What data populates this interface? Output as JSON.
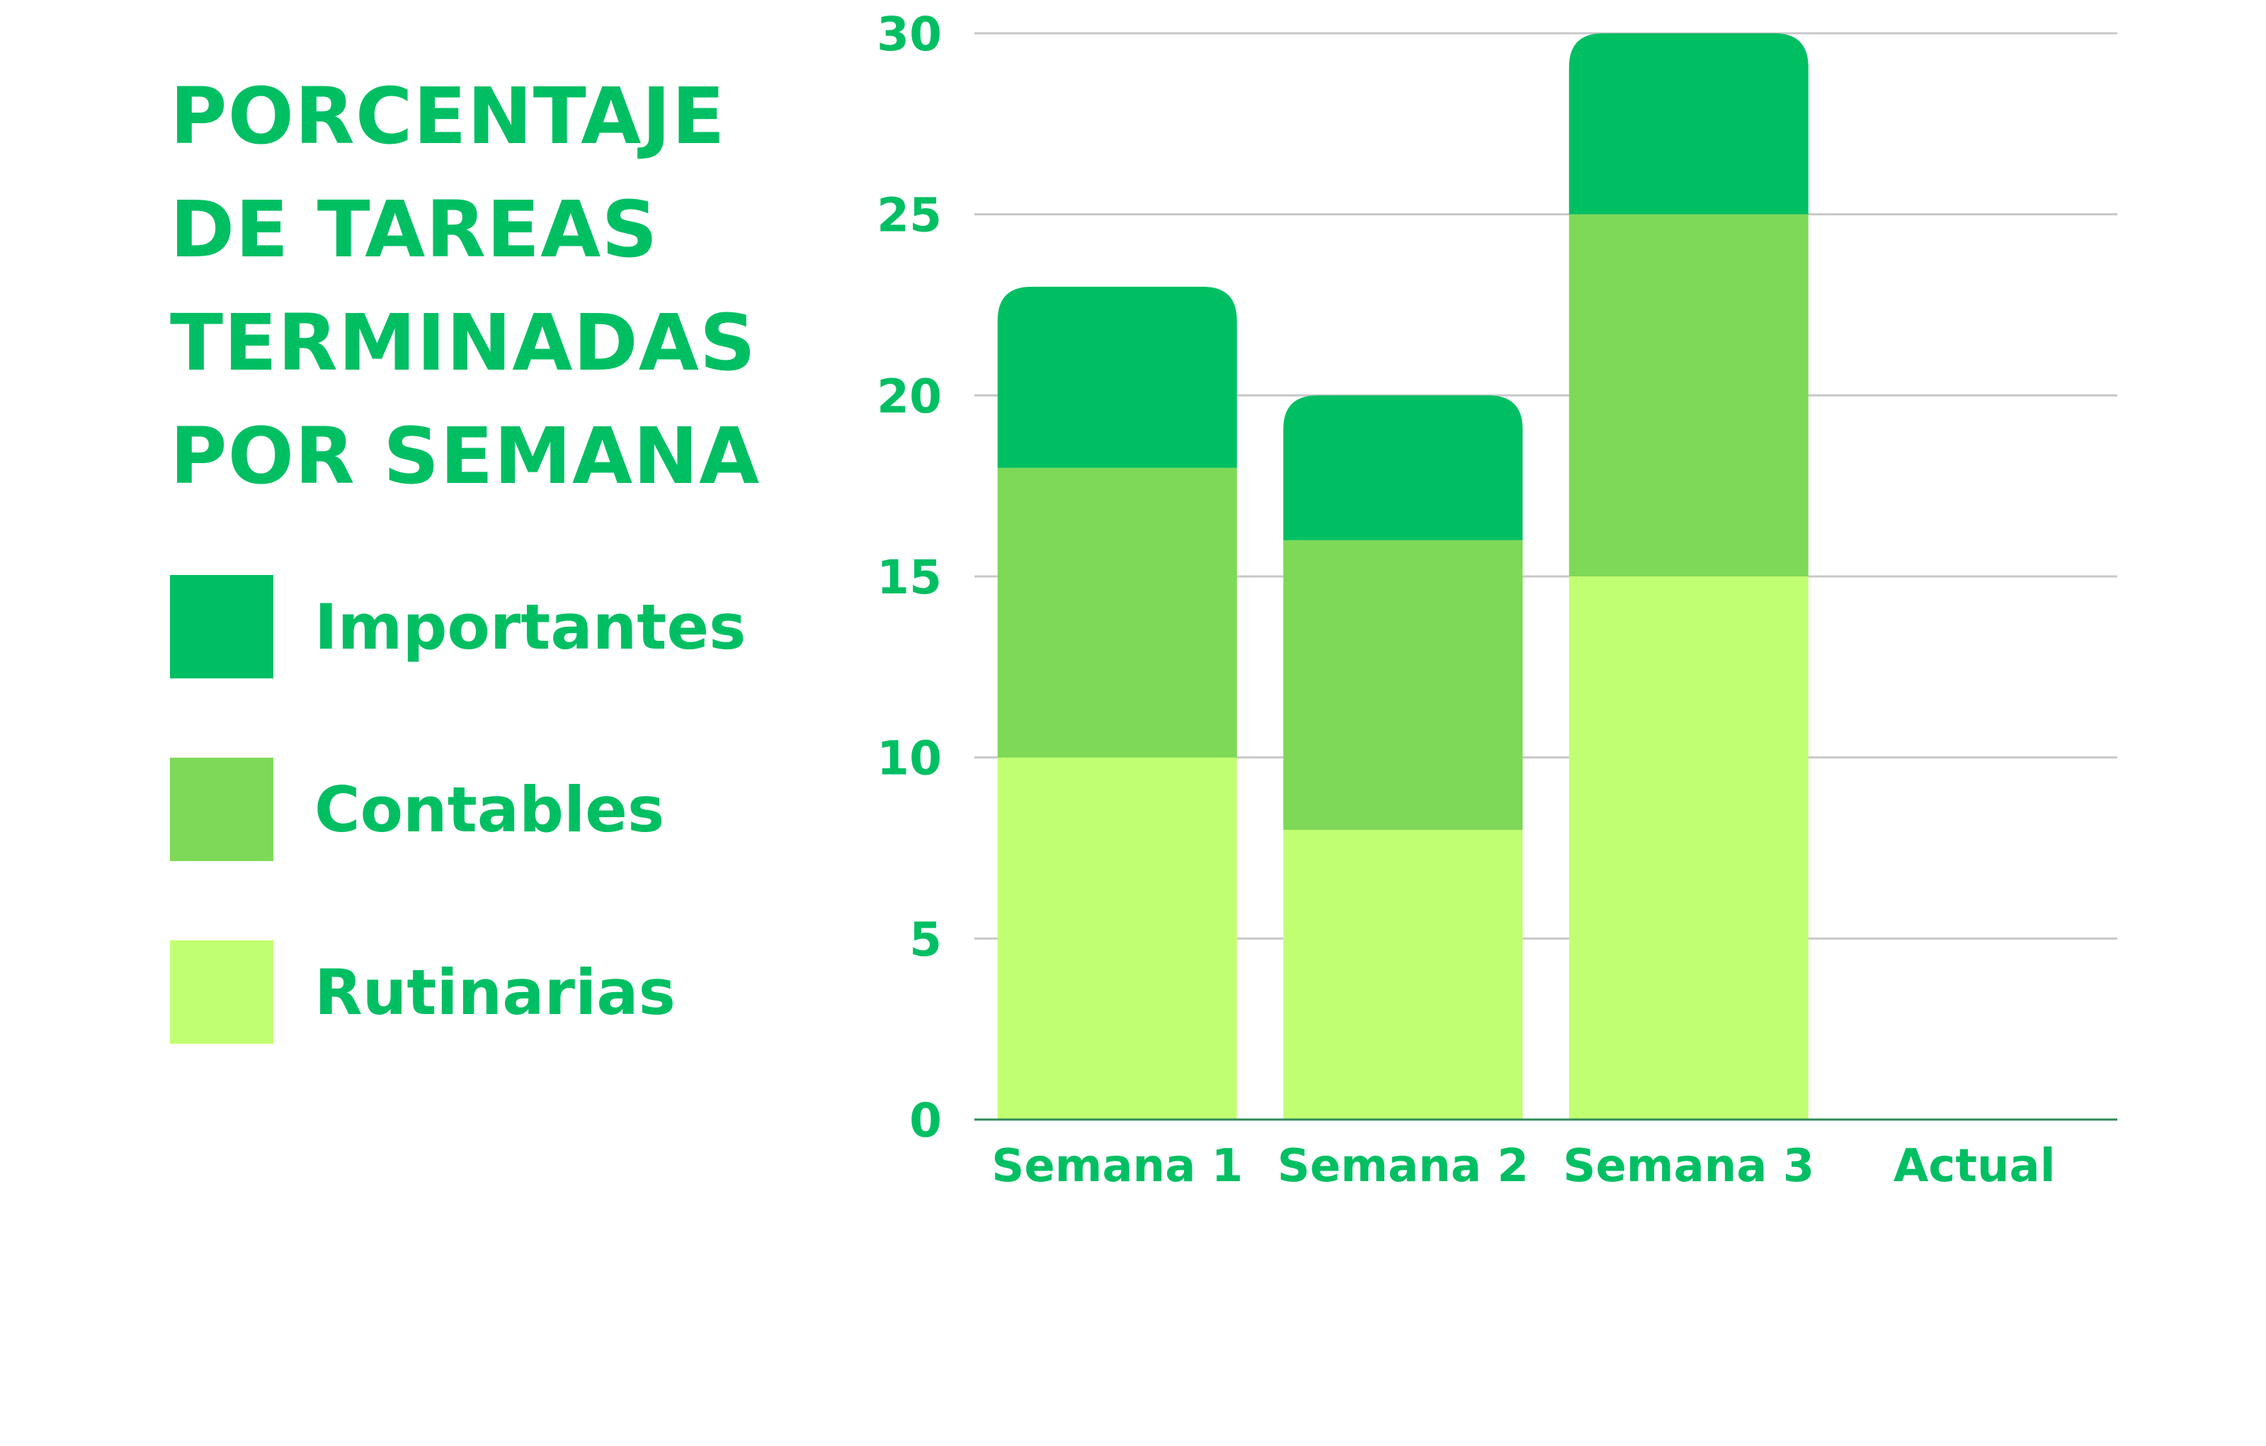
{
  "colors": {
    "text": "#00bf63",
    "grid": "#c8c8c8",
    "axis": "#2e8b57",
    "importantes": "#00bf63",
    "contables": "#7ed957",
    "rutinarias": "#c1ff72"
  },
  "title_lines": [
    "PORCENTAJE",
    "DE TAREAS",
    "TERMINADAS",
    "POR SEMANA"
  ],
  "chart_data": {
    "type": "bar",
    "stacked": true,
    "title": "PORCENTAJE DE TAREAS TERMINADAS POR SEMANA",
    "categories": [
      "Semana 1",
      "Semana 2",
      "Semana 3",
      "Actual"
    ],
    "series": [
      {
        "name": "Rutinarias",
        "color": "#c1ff72",
        "values": [
          10,
          8,
          15,
          0
        ]
      },
      {
        "name": "Contables",
        "color": "#7ed957",
        "values": [
          8,
          8,
          10,
          0
        ]
      },
      {
        "name": "Importantes",
        "color": "#00bf63",
        "values": [
          5,
          4,
          5,
          0
        ]
      }
    ],
    "ylim": [
      0,
      30
    ],
    "yticks": [
      "0",
      "5",
      "10",
      "15",
      "20",
      "25",
      "30"
    ],
    "xlabel": "",
    "ylabel": "",
    "grid": true,
    "legend_placement": "left"
  },
  "legend": [
    {
      "label": "Importantes",
      "color": "#00bf63"
    },
    {
      "label": "Contables",
      "color": "#7ed957"
    },
    {
      "label": "Rutinarias",
      "color": "#c1ff72"
    }
  ]
}
